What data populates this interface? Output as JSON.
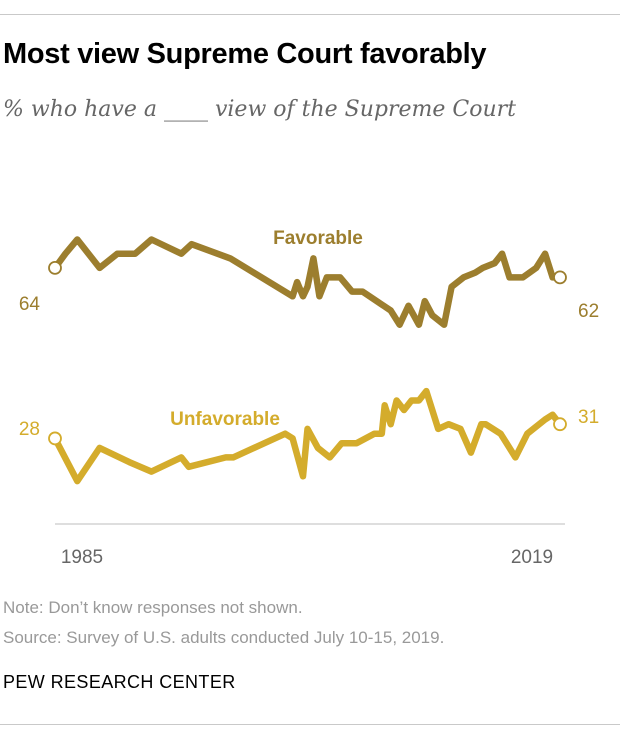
{
  "header": {
    "title": "Most view Supreme Court favorably",
    "subtitle": "% who have a ____ view of the Supreme Court"
  },
  "chart_data": {
    "type": "line",
    "x_range": [
      1985,
      2019
    ],
    "x_tick_labels": [
      "1985",
      "2019"
    ],
    "ylim": [
      15,
      72
    ],
    "grid": false,
    "legend": "inline labels",
    "series": [
      {
        "name": "Favorable",
        "color": "#9c7e2e",
        "start_label": "64",
        "end_label": "62",
        "points": [
          [
            1985.0,
            64
          ],
          [
            1985.7,
            67
          ],
          [
            1986.5,
            70
          ],
          [
            1988.0,
            64
          ],
          [
            1989.2,
            67
          ],
          [
            1990.4,
            67
          ],
          [
            1991.5,
            70
          ],
          [
            1993.5,
            67
          ],
          [
            1994.2,
            69
          ],
          [
            1996.8,
            66
          ],
          [
            2001.0,
            58
          ],
          [
            2001.3,
            61
          ],
          [
            2001.7,
            58
          ],
          [
            2002.0,
            60
          ],
          [
            2002.4,
            66
          ],
          [
            2002.8,
            58
          ],
          [
            2003.3,
            62
          ],
          [
            2004.2,
            62
          ],
          [
            2005.0,
            59
          ],
          [
            2005.7,
            59
          ],
          [
            2007.6,
            55
          ],
          [
            2008.2,
            52
          ],
          [
            2008.8,
            56
          ],
          [
            2009.5,
            52
          ],
          [
            2009.9,
            57
          ],
          [
            2010.4,
            54
          ],
          [
            2011.2,
            52
          ],
          [
            2011.7,
            60
          ],
          [
            2012.5,
            62
          ],
          [
            2013.3,
            63
          ],
          [
            2013.8,
            64
          ],
          [
            2014.6,
            65
          ],
          [
            2015.1,
            67
          ],
          [
            2015.6,
            62
          ],
          [
            2016.5,
            62
          ],
          [
            2017.4,
            64
          ],
          [
            2018.0,
            67
          ],
          [
            2018.5,
            62
          ],
          [
            2019.0,
            62
          ]
        ]
      },
      {
        "name": "Unfavorable",
        "color": "#d4ac2c",
        "start_label": "28",
        "end_label": "31",
        "points": [
          [
            1985.0,
            28
          ],
          [
            1986.5,
            19
          ],
          [
            1988.0,
            26
          ],
          [
            1990.0,
            23
          ],
          [
            1991.5,
            21
          ],
          [
            1993.5,
            24
          ],
          [
            1994.0,
            22
          ],
          [
            1996.5,
            24
          ],
          [
            1997.0,
            24
          ],
          [
            2000.5,
            29
          ],
          [
            2001.0,
            28
          ],
          [
            2001.7,
            20
          ],
          [
            2002.0,
            30
          ],
          [
            2002.7,
            26
          ],
          [
            2003.5,
            24
          ],
          [
            2004.3,
            27
          ],
          [
            2005.3,
            27
          ],
          [
            2006.5,
            29
          ],
          [
            2007.0,
            29
          ],
          [
            2007.2,
            35
          ],
          [
            2007.6,
            31
          ],
          [
            2008.0,
            36
          ],
          [
            2008.5,
            34
          ],
          [
            2009.0,
            36
          ],
          [
            2009.5,
            36
          ],
          [
            2010.0,
            38
          ],
          [
            2010.8,
            30
          ],
          [
            2011.5,
            31
          ],
          [
            2012.3,
            30
          ],
          [
            2013.0,
            25
          ],
          [
            2013.7,
            31
          ],
          [
            2014.0,
            31
          ],
          [
            2015.0,
            29
          ],
          [
            2016.0,
            24
          ],
          [
            2016.8,
            29
          ],
          [
            2018.0,
            32
          ],
          [
            2018.5,
            33
          ],
          [
            2019.0,
            31
          ]
        ]
      }
    ]
  },
  "footer": {
    "note": "Note: Don’t know responses not shown.",
    "source": "Source: Survey of U.S. adults conducted July 10-15, 2019.",
    "brand": "PEW RESEARCH CENTER"
  }
}
